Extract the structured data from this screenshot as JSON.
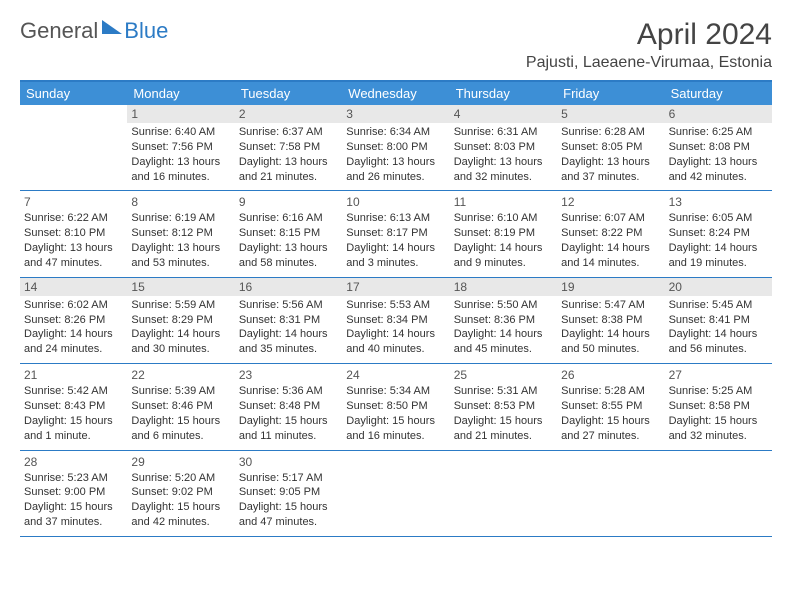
{
  "brand": {
    "general": "General",
    "blue": "Blue"
  },
  "title": "April 2024",
  "location": "Pajusti, Laeaene-Virumaa, Estonia",
  "dow": [
    "Sunday",
    "Monday",
    "Tuesday",
    "Wednesday",
    "Thursday",
    "Friday",
    "Saturday"
  ],
  "colors": {
    "accent": "#2c7bc5",
    "header_bg": "#3d8fd6",
    "shade_bg": "#e8e8e8",
    "text": "#333333",
    "title_text": "#444444"
  },
  "blank_lead": 1,
  "days": [
    {
      "n": "1",
      "sr": "Sunrise: 6:40 AM",
      "ss": "Sunset: 7:56 PM",
      "dl1": "Daylight: 13 hours",
      "dl2": "and 16 minutes.",
      "shade": true
    },
    {
      "n": "2",
      "sr": "Sunrise: 6:37 AM",
      "ss": "Sunset: 7:58 PM",
      "dl1": "Daylight: 13 hours",
      "dl2": "and 21 minutes.",
      "shade": true
    },
    {
      "n": "3",
      "sr": "Sunrise: 6:34 AM",
      "ss": "Sunset: 8:00 PM",
      "dl1": "Daylight: 13 hours",
      "dl2": "and 26 minutes.",
      "shade": true
    },
    {
      "n": "4",
      "sr": "Sunrise: 6:31 AM",
      "ss": "Sunset: 8:03 PM",
      "dl1": "Daylight: 13 hours",
      "dl2": "and 32 minutes.",
      "shade": true
    },
    {
      "n": "5",
      "sr": "Sunrise: 6:28 AM",
      "ss": "Sunset: 8:05 PM",
      "dl1": "Daylight: 13 hours",
      "dl2": "and 37 minutes.",
      "shade": true
    },
    {
      "n": "6",
      "sr": "Sunrise: 6:25 AM",
      "ss": "Sunset: 8:08 PM",
      "dl1": "Daylight: 13 hours",
      "dl2": "and 42 minutes.",
      "shade": true
    },
    {
      "n": "7",
      "sr": "Sunrise: 6:22 AM",
      "ss": "Sunset: 8:10 PM",
      "dl1": "Daylight: 13 hours",
      "dl2": "and 47 minutes."
    },
    {
      "n": "8",
      "sr": "Sunrise: 6:19 AM",
      "ss": "Sunset: 8:12 PM",
      "dl1": "Daylight: 13 hours",
      "dl2": "and 53 minutes."
    },
    {
      "n": "9",
      "sr": "Sunrise: 6:16 AM",
      "ss": "Sunset: 8:15 PM",
      "dl1": "Daylight: 13 hours",
      "dl2": "and 58 minutes."
    },
    {
      "n": "10",
      "sr": "Sunrise: 6:13 AM",
      "ss": "Sunset: 8:17 PM",
      "dl1": "Daylight: 14 hours",
      "dl2": "and 3 minutes."
    },
    {
      "n": "11",
      "sr": "Sunrise: 6:10 AM",
      "ss": "Sunset: 8:19 PM",
      "dl1": "Daylight: 14 hours",
      "dl2": "and 9 minutes."
    },
    {
      "n": "12",
      "sr": "Sunrise: 6:07 AM",
      "ss": "Sunset: 8:22 PM",
      "dl1": "Daylight: 14 hours",
      "dl2": "and 14 minutes."
    },
    {
      "n": "13",
      "sr": "Sunrise: 6:05 AM",
      "ss": "Sunset: 8:24 PM",
      "dl1": "Daylight: 14 hours",
      "dl2": "and 19 minutes."
    },
    {
      "n": "14",
      "sr": "Sunrise: 6:02 AM",
      "ss": "Sunset: 8:26 PM",
      "dl1": "Daylight: 14 hours",
      "dl2": "and 24 minutes.",
      "shade": true
    },
    {
      "n": "15",
      "sr": "Sunrise: 5:59 AM",
      "ss": "Sunset: 8:29 PM",
      "dl1": "Daylight: 14 hours",
      "dl2": "and 30 minutes.",
      "shade": true
    },
    {
      "n": "16",
      "sr": "Sunrise: 5:56 AM",
      "ss": "Sunset: 8:31 PM",
      "dl1": "Daylight: 14 hours",
      "dl2": "and 35 minutes.",
      "shade": true
    },
    {
      "n": "17",
      "sr": "Sunrise: 5:53 AM",
      "ss": "Sunset: 8:34 PM",
      "dl1": "Daylight: 14 hours",
      "dl2": "and 40 minutes.",
      "shade": true
    },
    {
      "n": "18",
      "sr": "Sunrise: 5:50 AM",
      "ss": "Sunset: 8:36 PM",
      "dl1": "Daylight: 14 hours",
      "dl2": "and 45 minutes.",
      "shade": true
    },
    {
      "n": "19",
      "sr": "Sunrise: 5:47 AM",
      "ss": "Sunset: 8:38 PM",
      "dl1": "Daylight: 14 hours",
      "dl2": "and 50 minutes.",
      "shade": true
    },
    {
      "n": "20",
      "sr": "Sunrise: 5:45 AM",
      "ss": "Sunset: 8:41 PM",
      "dl1": "Daylight: 14 hours",
      "dl2": "and 56 minutes.",
      "shade": true
    },
    {
      "n": "21",
      "sr": "Sunrise: 5:42 AM",
      "ss": "Sunset: 8:43 PM",
      "dl1": "Daylight: 15 hours",
      "dl2": "and 1 minute."
    },
    {
      "n": "22",
      "sr": "Sunrise: 5:39 AM",
      "ss": "Sunset: 8:46 PM",
      "dl1": "Daylight: 15 hours",
      "dl2": "and 6 minutes."
    },
    {
      "n": "23",
      "sr": "Sunrise: 5:36 AM",
      "ss": "Sunset: 8:48 PM",
      "dl1": "Daylight: 15 hours",
      "dl2": "and 11 minutes."
    },
    {
      "n": "24",
      "sr": "Sunrise: 5:34 AM",
      "ss": "Sunset: 8:50 PM",
      "dl1": "Daylight: 15 hours",
      "dl2": "and 16 minutes."
    },
    {
      "n": "25",
      "sr": "Sunrise: 5:31 AM",
      "ss": "Sunset: 8:53 PM",
      "dl1": "Daylight: 15 hours",
      "dl2": "and 21 minutes."
    },
    {
      "n": "26",
      "sr": "Sunrise: 5:28 AM",
      "ss": "Sunset: 8:55 PM",
      "dl1": "Daylight: 15 hours",
      "dl2": "and 27 minutes."
    },
    {
      "n": "27",
      "sr": "Sunrise: 5:25 AM",
      "ss": "Sunset: 8:58 PM",
      "dl1": "Daylight: 15 hours",
      "dl2": "and 32 minutes."
    },
    {
      "n": "28",
      "sr": "Sunrise: 5:23 AM",
      "ss": "Sunset: 9:00 PM",
      "dl1": "Daylight: 15 hours",
      "dl2": "and 37 minutes."
    },
    {
      "n": "29",
      "sr": "Sunrise: 5:20 AM",
      "ss": "Sunset: 9:02 PM",
      "dl1": "Daylight: 15 hours",
      "dl2": "and 42 minutes."
    },
    {
      "n": "30",
      "sr": "Sunrise: 5:17 AM",
      "ss": "Sunset: 9:05 PM",
      "dl1": "Daylight: 15 hours",
      "dl2": "and 47 minutes."
    }
  ]
}
